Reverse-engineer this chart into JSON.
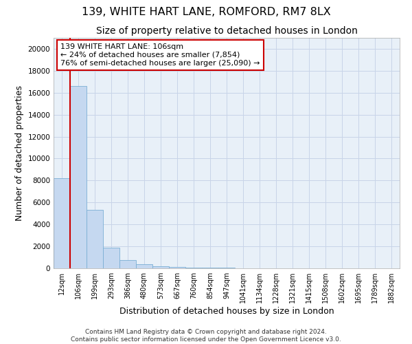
{
  "title": "139, WHITE HART LANE, ROMFORD, RM7 8LX",
  "subtitle": "Size of property relative to detached houses in London",
  "xlabel": "Distribution of detached houses by size in London",
  "ylabel": "Number of detached properties",
  "footer_line1": "Contains HM Land Registry data © Crown copyright and database right 2024.",
  "footer_line2": "Contains public sector information licensed under the Open Government Licence v3.0.",
  "annotation_line1": "139 WHITE HART LANE: 106sqm",
  "annotation_line2": "← 24% of detached houses are smaller (7,854)",
  "annotation_line3": "76% of semi-detached houses are larger (25,090) →",
  "bar_labels": [
    "12sqm",
    "106sqm",
    "199sqm",
    "293sqm",
    "386sqm",
    "480sqm",
    "573sqm",
    "667sqm",
    "760sqm",
    "854sqm",
    "947sqm",
    "1041sqm",
    "1134sqm",
    "1228sqm",
    "1321sqm",
    "1415sqm",
    "1508sqm",
    "1602sqm",
    "1695sqm",
    "1789sqm",
    "1882sqm"
  ],
  "bar_values": [
    8200,
    16600,
    5300,
    1850,
    750,
    350,
    200,
    100,
    70,
    50,
    40,
    30,
    25,
    20,
    18,
    15,
    12,
    10,
    9,
    8,
    7
  ],
  "bar_color": "#c5d8f0",
  "bar_edge_color": "#7aafd4",
  "red_line_color": "#cc0000",
  "ylim": [
    0,
    21000
  ],
  "yticks": [
    0,
    2000,
    4000,
    6000,
    8000,
    10000,
    12000,
    14000,
    16000,
    18000,
    20000
  ],
  "background_color": "#ffffff",
  "axes_bg_color": "#e8f0f8",
  "grid_color": "#c8d4e8",
  "annotation_box_edge": "#cc0000",
  "title_fontsize": 11.5,
  "subtitle_fontsize": 10,
  "axis_label_fontsize": 9,
  "tick_fontsize": 7,
  "annotation_fontsize": 8,
  "footer_fontsize": 6.5
}
